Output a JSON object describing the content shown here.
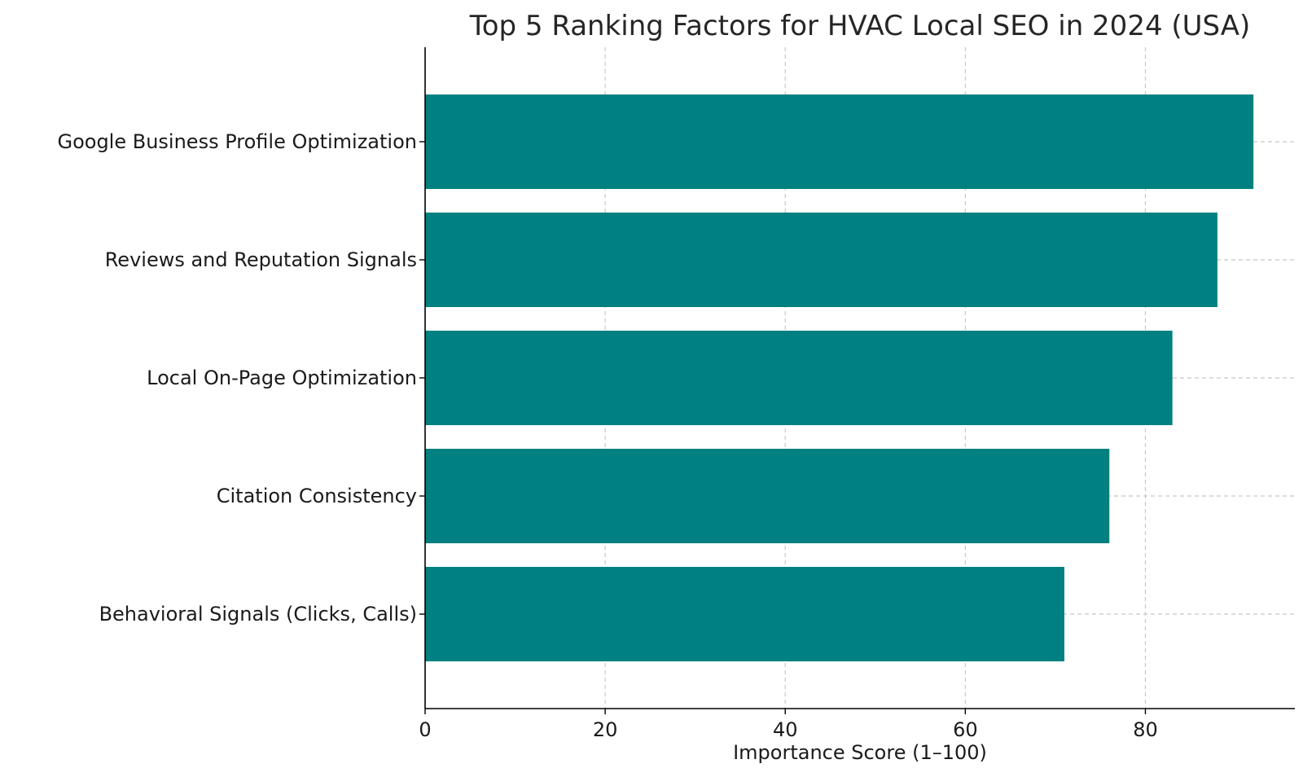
{
  "chart_data": {
    "type": "bar",
    "orientation": "horizontal",
    "title": "Top 5 Ranking Factors for HVAC Local SEO in 2024 (USA)",
    "xlabel": "Importance Score (1–100)",
    "ylabel": "",
    "categories": [
      "Google Business Profile Optimization",
      "Reviews and Reputation Signals",
      "Local On-Page Optimization",
      "Citation Consistency",
      "Behavioral Signals (Clicks, Calls)"
    ],
    "values": [
      92,
      88,
      83,
      76,
      71
    ],
    "xlim": [
      0,
      96.6
    ],
    "xticks": [
      0,
      20,
      40,
      60,
      80
    ],
    "grid": true,
    "bar_color": "#008080"
  }
}
